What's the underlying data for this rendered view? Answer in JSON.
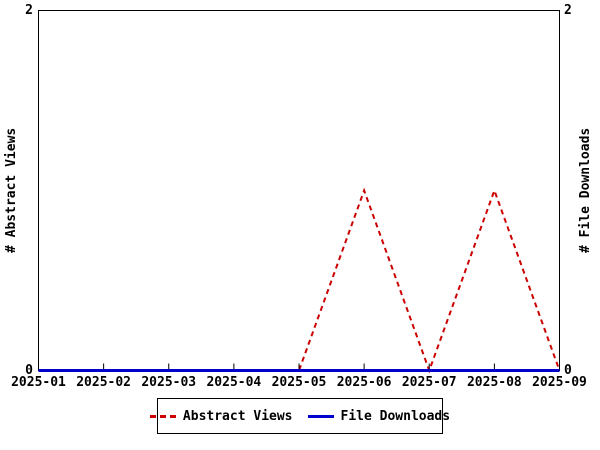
{
  "chart_data": {
    "type": "line",
    "title": "",
    "categories": [
      "2025-01",
      "2025-02",
      "2025-03",
      "2025-04",
      "2025-05",
      "2025-06",
      "2025-07",
      "2025-08",
      "2025-09"
    ],
    "series": [
      {
        "name": "Abstract Views",
        "values": [
          0,
          0,
          0,
          0,
          0,
          1,
          0,
          1,
          0
        ],
        "color": "#cc0000",
        "style": "dashed",
        "axis": "left"
      },
      {
        "name": "File Downloads",
        "values": [
          0,
          0,
          0,
          0,
          0,
          0,
          0,
          0,
          0
        ],
        "color": "#0000cc",
        "style": "solid",
        "axis": "right"
      }
    ],
    "ylabel_left": "# Abstract Views",
    "ylabel_right": "# File Downloads",
    "ylim": [
      0,
      2
    ],
    "yticks": [
      {
        "value": 0,
        "label": "0"
      },
      {
        "value": 2,
        "label": "2"
      }
    ],
    "grid": false,
    "axis_color": "#000000",
    "background_color": "#ffffff",
    "legend_position": "bottom-center"
  }
}
